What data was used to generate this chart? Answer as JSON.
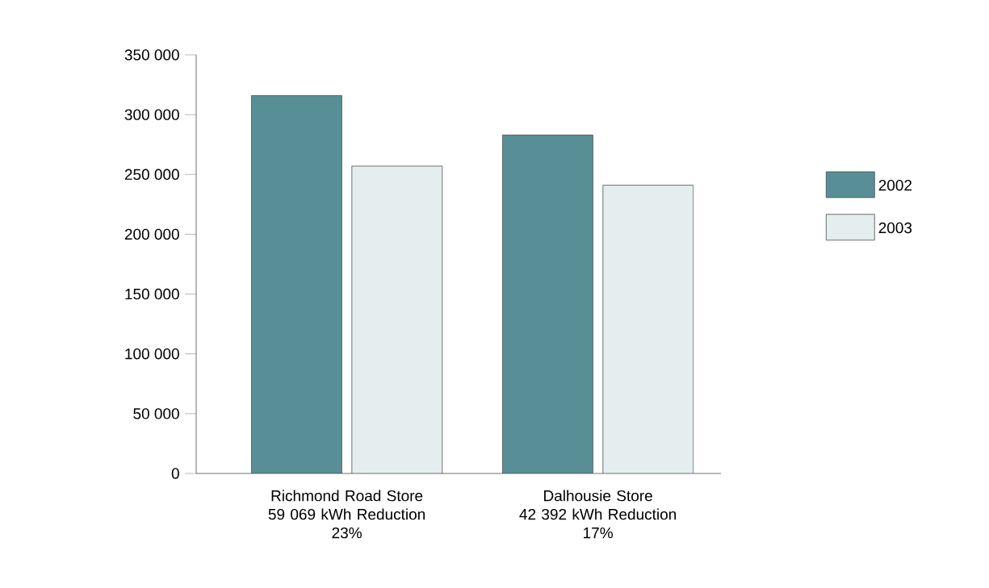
{
  "chart_data": {
    "type": "bar",
    "categories": [
      "Richmond Road Store\n59 069 kWh Reduction\n23%",
      "Dalhousie Store\n42 392 kWh Reduction\n17%"
    ],
    "series": [
      {
        "name": "2002",
        "color": "#588e96",
        "values": [
          316000,
          283000
        ]
      },
      {
        "name": "2003",
        "color": "#e4eeee",
        "values": [
          257000,
          241000
        ]
      }
    ],
    "ylim": [
      0,
      350000
    ],
    "yticks": [
      {
        "value": 0,
        "label": "0"
      },
      {
        "value": 50000,
        "label": "50 000"
      },
      {
        "value": 100000,
        "label": "100 000"
      },
      {
        "value": 150000,
        "label": "150 000"
      },
      {
        "value": 200000,
        "label": "200 000"
      },
      {
        "value": 250000,
        "label": "250 000"
      },
      {
        "value": 300000,
        "label": "300 000"
      },
      {
        "value": 350000,
        "label": "350 000"
      }
    ],
    "legend": "right",
    "grid": false
  }
}
